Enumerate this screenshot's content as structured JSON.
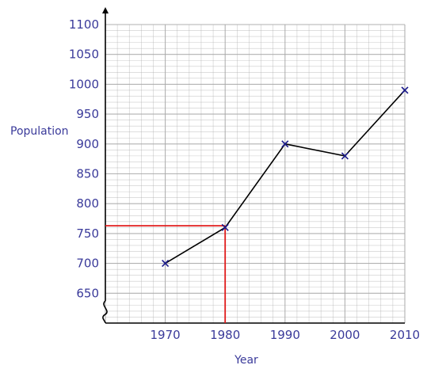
{
  "chart_data": {
    "type": "line",
    "xlabel": "Year",
    "ylabel": "Population",
    "x": [
      1970,
      1980,
      1990,
      2000,
      2010
    ],
    "y": [
      700,
      760,
      900,
      880,
      990
    ],
    "x_ticks": [
      "1970",
      "1980",
      "1990",
      "2000",
      "2010"
    ],
    "y_ticks": [
      "650",
      "700",
      "750",
      "800",
      "850",
      "900",
      "950",
      "1000",
      "1050",
      "1100"
    ],
    "xlim": [
      1960,
      2010
    ],
    "ylim": [
      600,
      1100
    ],
    "y_axis_break": true,
    "grid": "graph-paper",
    "marker": "x",
    "line_color": "#000000",
    "marker_color": "#1a1a8a",
    "label_color": "#3a3a9a",
    "grid_color": "#a9a9a9",
    "guide_color": "#e01b1b",
    "guide": {
      "x": 1980,
      "y": 763
    }
  }
}
